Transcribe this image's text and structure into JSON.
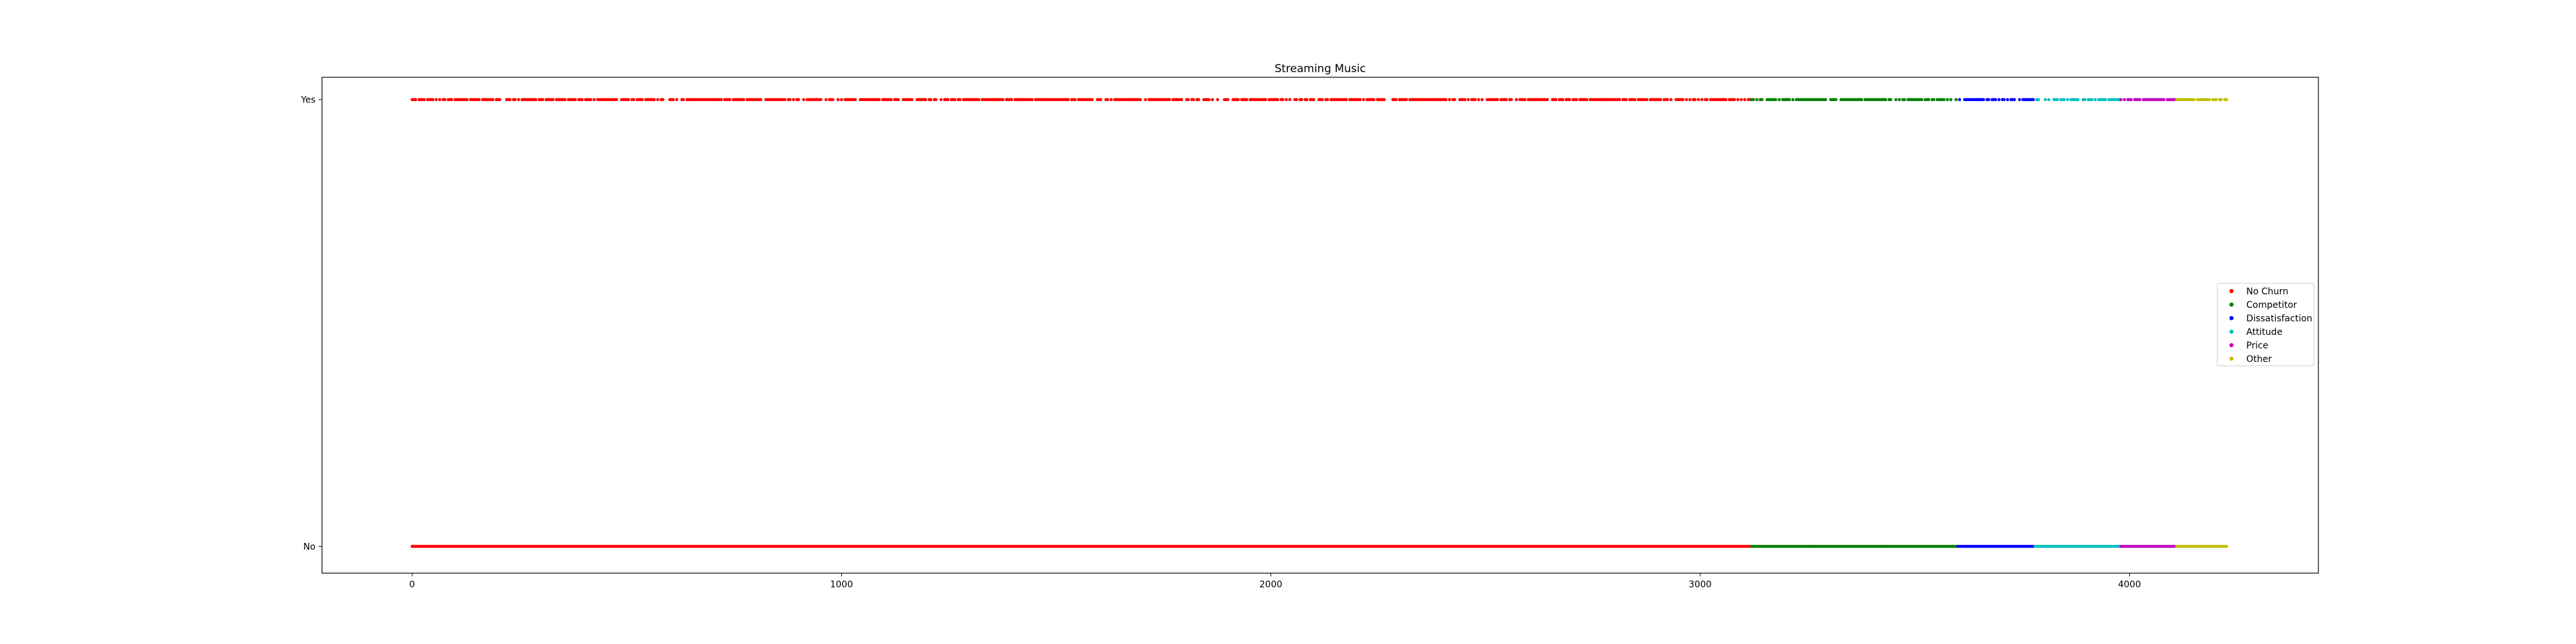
{
  "chart_data": {
    "type": "scatter",
    "title": "Streaming Music",
    "xlabel": "",
    "ylabel": "",
    "xlim": [
      -210,
      4440
    ],
    "ylim": [
      -0.06,
      1.05
    ],
    "x_ticks": [
      0,
      1000,
      2000,
      3000,
      4000
    ],
    "y_categories": [
      "No",
      "Yes"
    ],
    "grid": false,
    "legend_position": "center-right",
    "series": [
      {
        "name": "No Churn",
        "color": "#ff0000",
        "x_range": [
          0,
          3119
        ],
        "values": [
          "No",
          "Yes"
        ]
      },
      {
        "name": "Competitor",
        "color": "#008000",
        "x_range": [
          3120,
          3599
        ],
        "values": [
          "No",
          "Yes"
        ]
      },
      {
        "name": "Dissatisfaction",
        "color": "#0000ff",
        "x_range": [
          3600,
          3779
        ],
        "values": [
          "No",
          "Yes"
        ]
      },
      {
        "name": "Attitude",
        "color": "#00bfbf",
        "x_range": [
          3780,
          3979
        ],
        "values": [
          "No",
          "Yes"
        ]
      },
      {
        "name": "Price",
        "color": "#bf00bf",
        "x_range": [
          3980,
          4109
        ],
        "values": [
          "No",
          "Yes"
        ]
      },
      {
        "name": "Other",
        "color": "#bfbf00",
        "x_range": [
          4110,
          4229
        ],
        "values": [
          "No",
          "Yes"
        ]
      }
    ]
  }
}
